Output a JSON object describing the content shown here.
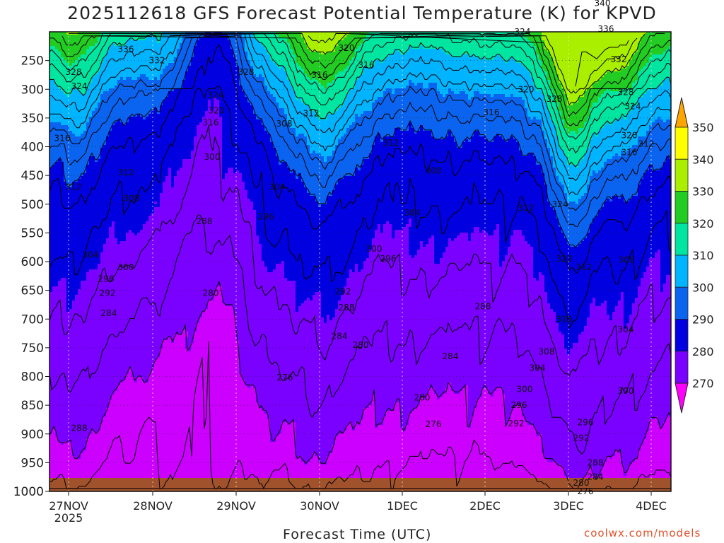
{
  "title": "2025112618 GFS Forecast Potential Temperature (K) for KPVD",
  "credit": "coolwx.com/models",
  "chart_data": {
    "type": "heatmap",
    "title": "2025112618 GFS Forecast Potential Temperature (K) for KPVD",
    "xlabel": "Forecast Time (UTC)",
    "ylabel": "",
    "x_ticks": [
      "27NOV",
      "28NOV",
      "29NOV",
      "30NOV",
      "1DEC",
      "2DEC",
      "3DEC",
      "4DEC"
    ],
    "x_tick_sub": "2025",
    "y_ticks": [
      250,
      300,
      350,
      400,
      450,
      500,
      550,
      600,
      650,
      700,
      750,
      800,
      850,
      900,
      950,
      1000
    ],
    "ylim": [
      200,
      1000
    ],
    "color_levels": [
      270,
      280,
      290,
      300,
      310,
      320,
      330,
      340,
      350
    ],
    "colors": [
      "#ff00ff",
      "#cc00ff",
      "#7a00ff",
      "#0000e0",
      "#0a64f0",
      "#00b4ff",
      "#00e5a0",
      "#22cc22",
      "#aaee00",
      "#ffff00",
      "#ffa500"
    ],
    "contour_interval": 4,
    "grid": true,
    "colorbar": "right",
    "contour_labels": [
      {
        "x": 178,
        "y": 230,
        "v": "336"
      },
      {
        "x": 222,
        "y": 250,
        "v": "332"
      },
      {
        "x": 104,
        "y": 270,
        "v": "328"
      },
      {
        "x": 112,
        "y": 295,
        "v": "324"
      },
      {
        "x": 88,
        "y": 385,
        "v": "316"
      },
      {
        "x": 178,
        "y": 445,
        "v": "312"
      },
      {
        "x": 104,
        "y": 470,
        "v": "312"
      },
      {
        "x": 186,
        "y": 490,
        "v": "308"
      },
      {
        "x": 128,
        "y": 588,
        "v": "304"
      },
      {
        "x": 178,
        "y": 610,
        "v": "300"
      },
      {
        "x": 150,
        "y": 630,
        "v": "296"
      },
      {
        "x": 152,
        "y": 655,
        "v": "292"
      },
      {
        "x": 154,
        "y": 690,
        "v": "284"
      },
      {
        "x": 112,
        "y": 890,
        "v": "288"
      },
      {
        "x": 348,
        "y": 270,
        "v": "328"
      },
      {
        "x": 305,
        "y": 310,
        "v": "324"
      },
      {
        "x": 306,
        "y": 337,
        "v": "320"
      },
      {
        "x": 298,
        "y": 358,
        "v": "316"
      },
      {
        "x": 300,
        "y": 418,
        "v": "300"
      },
      {
        "x": 289,
        "y": 530,
        "v": "288"
      },
      {
        "x": 298,
        "y": 655,
        "v": "280"
      },
      {
        "x": 392,
        "y": 470,
        "v": "304"
      },
      {
        "x": 376,
        "y": 522,
        "v": "296"
      },
      {
        "x": 490,
        "y": 228,
        "v": "320"
      },
      {
        "x": 518,
        "y": 258,
        "v": "316"
      },
      {
        "x": 452,
        "y": 275,
        "v": "316"
      },
      {
        "x": 440,
        "y": 342,
        "v": "312"
      },
      {
        "x": 402,
        "y": 360,
        "v": "308"
      },
      {
        "x": 553,
        "y": 393,
        "v": "312"
      },
      {
        "x": 613,
        "y": 442,
        "v": "308"
      },
      {
        "x": 583,
        "y": 515,
        "v": "304"
      },
      {
        "x": 529,
        "y": 578,
        "v": "300"
      },
      {
        "x": 549,
        "y": 595,
        "v": "296"
      },
      {
        "x": 485,
        "y": 652,
        "v": "292"
      },
      {
        "x": 490,
        "y": 680,
        "v": "288"
      },
      {
        "x": 480,
        "y": 730,
        "v": "284"
      },
      {
        "x": 510,
        "y": 745,
        "v": "280"
      },
      {
        "x": 403,
        "y": 802,
        "v": "276"
      },
      {
        "x": 597,
        "y": 837,
        "v": "280"
      },
      {
        "x": 613,
        "y": 883,
        "v": "276"
      },
      {
        "x": 683,
        "y": 678,
        "v": "288"
      },
      {
        "x": 637,
        "y": 765,
        "v": "284"
      },
      {
        "x": 739,
        "y": 200,
        "v": "324"
      },
      {
        "x": 744,
        "y": 300,
        "v": "320"
      },
      {
        "x": 695,
        "y": 340,
        "v": "316"
      },
      {
        "x": 784,
        "y": 317,
        "v": "328"
      },
      {
        "x": 852,
        "y": 150,
        "v": "340"
      },
      {
        "x": 857,
        "y": 195,
        "v": "336"
      },
      {
        "x": 875,
        "y": 248,
        "v": "332"
      },
      {
        "x": 885,
        "y": 305,
        "v": "328"
      },
      {
        "x": 895,
        "y": 330,
        "v": "324"
      },
      {
        "x": 890,
        "y": 380,
        "v": "320"
      },
      {
        "x": 914,
        "y": 395,
        "v": "312"
      },
      {
        "x": 890,
        "y": 410,
        "v": "316"
      },
      {
        "x": 792,
        "y": 500,
        "v": "324"
      },
      {
        "x": 744,
        "y": 507,
        "v": "312"
      },
      {
        "x": 798,
        "y": 595,
        "v": "320"
      },
      {
        "x": 826,
        "y": 610,
        "v": "312"
      },
      {
        "x": 886,
        "y": 597,
        "v": "308"
      },
      {
        "x": 798,
        "y": 700,
        "v": "316"
      },
      {
        "x": 773,
        "y": 757,
        "v": "308"
      },
      {
        "x": 760,
        "y": 785,
        "v": "304"
      },
      {
        "x": 885,
        "y": 718,
        "v": "304"
      },
      {
        "x": 742,
        "y": 822,
        "v": "300"
      },
      {
        "x": 734,
        "y": 850,
        "v": "296"
      },
      {
        "x": 730,
        "y": 882,
        "v": "292"
      },
      {
        "x": 885,
        "y": 825,
        "v": "300"
      },
      {
        "x": 828,
        "y": 880,
        "v": "296"
      },
      {
        "x": 822,
        "y": 907,
        "v": "292"
      },
      {
        "x": 842,
        "y": 950,
        "v": "288"
      },
      {
        "x": 842,
        "y": 975,
        "v": "284"
      },
      {
        "x": 822,
        "y": 985,
        "v": "280"
      },
      {
        "x": 828,
        "y": 1000,
        "v": "276"
      }
    ]
  }
}
